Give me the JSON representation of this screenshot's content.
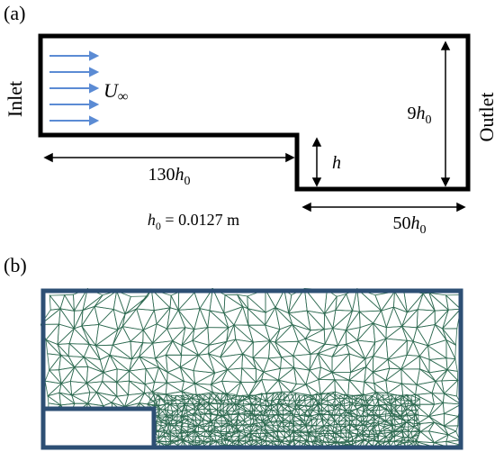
{
  "panelA": {
    "label": "(a)",
    "label_fontsize": 22,
    "geometry": {
      "stroke": "#000000",
      "stroke_width": 5,
      "fill": "#ffffff"
    },
    "inlet_label": "Inlet",
    "outlet_label": "Outlet",
    "side_label_fontsize": 22,
    "velocity_label": "U∞",
    "dim_130h0": "130h₀",
    "dim_50h0": "50h₀",
    "dim_9h0": "9h₀",
    "dim_h": "h",
    "note": "h₀ = 0.0127 m",
    "note_fontsize": 18,
    "dim_fontsize": 20,
    "arrow_color": "#5b8bd4",
    "dim_arrow_color": "#000000"
  },
  "panelB": {
    "label": "(b)",
    "label_fontsize": 22,
    "mesh_frame_color": "#2d4f74",
    "mesh_frame_width": 5,
    "mesh_line_color": "#2f6b52",
    "mesh_line_width": 0.8,
    "mesh_background": "#ffffff"
  }
}
